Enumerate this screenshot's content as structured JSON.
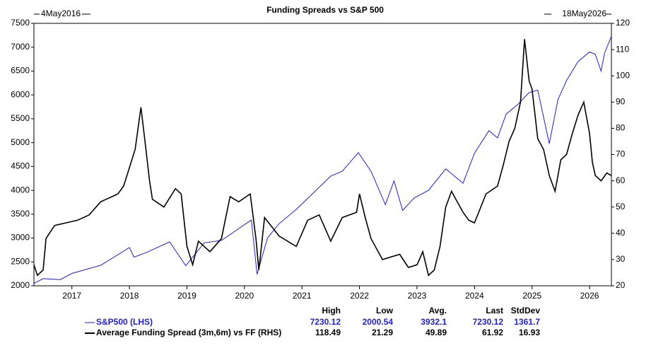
{
  "chart_data": {
    "type": "line",
    "title": "Funding Spreads vs S&P 500",
    "start_label": "4May2016",
    "end_label": "18May2026",
    "xlim": [
      2016.34,
      2026.38
    ],
    "xticks": [
      2017,
      2018,
      2019,
      2020,
      2021,
      2022,
      2023,
      2024,
      2025,
      2026
    ],
    "ylim": [
      2000,
      7500
    ],
    "yticks": [
      2000,
      2500,
      3000,
      3500,
      4000,
      4500,
      5000,
      5500,
      6000,
      6500,
      7000,
      7500
    ],
    "y2lim": [
      20,
      120
    ],
    "y2ticks": [
      20,
      30,
      40,
      50,
      60,
      70,
      80,
      90,
      100,
      110,
      120
    ],
    "series": [
      {
        "name": "S&P500 (LHS)",
        "color": "#1f1fcc",
        "axis": "y",
        "x": [
          2016.34,
          2016.5,
          2016.8,
          2017.0,
          2017.5,
          2018.0,
          2018.08,
          2018.3,
          2018.7,
          2018.98,
          2019.3,
          2019.6,
          2019.9,
          2020.12,
          2020.22,
          2020.4,
          2020.6,
          2020.9,
          2021.2,
          2021.5,
          2021.7,
          2021.98,
          2022.2,
          2022.45,
          2022.6,
          2022.75,
          2022.95,
          2023.2,
          2023.5,
          2023.8,
          2024.0,
          2024.25,
          2024.4,
          2024.55,
          2024.75,
          2024.95,
          2025.1,
          2025.3,
          2025.45,
          2025.6,
          2025.8,
          2026.0,
          2026.1,
          2026.2,
          2026.26,
          2026.38
        ],
        "values": [
          2050,
          2150,
          2130,
          2260,
          2430,
          2800,
          2600,
          2700,
          2920,
          2420,
          2900,
          2950,
          3200,
          3380,
          2240,
          3000,
          3300,
          3600,
          3950,
          4300,
          4400,
          4790,
          4400,
          3700,
          4200,
          3580,
          3840,
          4000,
          4450,
          4150,
          4780,
          5250,
          5100,
          5600,
          5800,
          6050,
          6100,
          4980,
          5900,
          6300,
          6700,
          6900,
          6850,
          6500,
          6870,
          7230
        ]
      },
      {
        "name": "Average Funding Spread (3m,6m) vs FF (RHS)",
        "color": "#000000",
        "axis": "y2",
        "x": [
          2016.34,
          2016.4,
          2016.5,
          2016.55,
          2016.7,
          2016.9,
          2017.1,
          2017.3,
          2017.5,
          2017.8,
          2017.9,
          2018.0,
          2018.1,
          2018.2,
          2018.25,
          2018.35,
          2018.4,
          2018.6,
          2018.8,
          2018.9,
          2019.0,
          2019.1,
          2019.2,
          2019.4,
          2019.6,
          2019.75,
          2019.9,
          2020.1,
          2020.2,
          2020.25,
          2020.35,
          2020.6,
          2020.9,
          2021.1,
          2021.3,
          2021.5,
          2021.7,
          2021.95,
          2022.0,
          2022.1,
          2022.2,
          2022.4,
          2022.7,
          2022.85,
          2023.0,
          2023.1,
          2023.2,
          2023.3,
          2023.4,
          2023.5,
          2023.6,
          2023.7,
          2023.8,
          2023.9,
          2024.0,
          2024.2,
          2024.4,
          2024.5,
          2024.6,
          2024.7,
          2024.8,
          2024.87,
          2024.95,
          2025.0,
          2025.1,
          2025.2,
          2025.3,
          2025.4,
          2025.5,
          2025.6,
          2025.7,
          2025.8,
          2025.9,
          2026.0,
          2026.05,
          2026.1,
          2026.2,
          2026.3,
          2026.38
        ],
        "values": [
          28,
          24,
          26,
          38,
          43,
          44,
          45,
          47,
          52,
          55,
          58,
          65,
          72,
          88,
          79,
          60,
          53,
          50,
          57,
          55,
          35,
          28,
          37,
          33,
          38,
          54,
          52,
          55,
          38,
          26,
          46,
          39,
          35,
          45,
          47,
          37,
          46,
          48,
          55,
          46,
          38,
          30,
          32,
          27,
          28,
          33,
          24,
          26,
          35,
          50,
          56,
          52,
          48,
          45,
          44,
          55,
          58,
          66,
          75,
          80,
          90,
          114,
          98,
          95,
          76,
          72,
          62,
          56,
          68,
          70,
          78,
          85,
          90,
          78,
          67,
          62,
          60,
          63,
          62
        ]
      }
    ],
    "stats": {
      "columns": [
        "High",
        "Low",
        "Avg.",
        "Last",
        "StdDev"
      ],
      "rows": [
        [
          7230.12,
          2000.54,
          3932.1,
          7230.12,
          1361.7
        ],
        [
          118.49,
          21.29,
          49.89,
          61.92,
          16.93
        ]
      ]
    }
  }
}
